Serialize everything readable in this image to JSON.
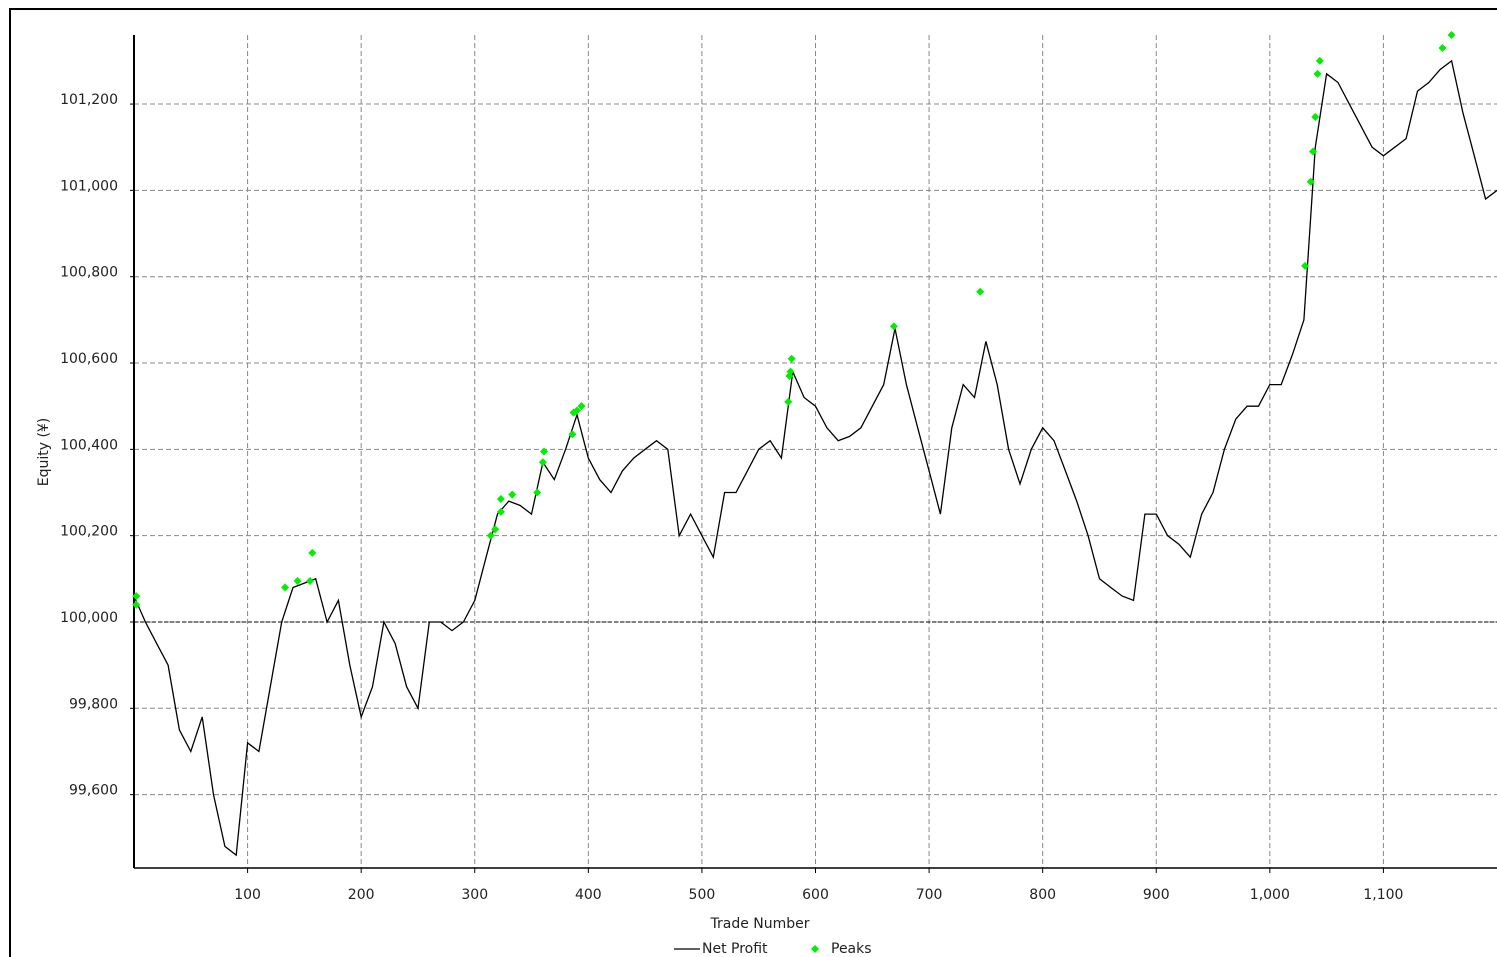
{
  "chart_data": {
    "type": "line",
    "x_label": "Trade Number",
    "y_label": "Equity (¥)",
    "xlim": [
      0,
      1200
    ],
    "ylim": [
      99430,
      101360
    ],
    "xticks": [
      100,
      200,
      300,
      400,
      500,
      600,
      700,
      800,
      900,
      {
        "value": 1000,
        "label": "1,000"
      },
      {
        "value": 1100,
        "label": "1,100"
      }
    ],
    "yticks": [
      {
        "value": 99600,
        "label": "99,600"
      },
      {
        "value": 99800,
        "label": "99,800"
      },
      {
        "value": 100000,
        "label": "100,000"
      },
      {
        "value": 100200,
        "label": "100,200"
      },
      {
        "value": 100400,
        "label": "100,400"
      },
      {
        "value": 100600,
        "label": "100,600"
      },
      {
        "value": 100800,
        "label": "100,800"
      },
      {
        "value": 101000,
        "label": "101,000"
      },
      {
        "value": 101200,
        "label": "101,200"
      }
    ],
    "grid": true,
    "reference_line": 100000,
    "legend": "bottom",
    "series": [
      {
        "name": "Net Profit",
        "color": "#000000",
        "x": [
          0,
          10,
          20,
          30,
          40,
          50,
          60,
          70,
          80,
          90,
          100,
          110,
          120,
          130,
          140,
          150,
          160,
          170,
          180,
          190,
          200,
          210,
          220,
          230,
          240,
          250,
          260,
          270,
          280,
          290,
          300,
          310,
          320,
          330,
          340,
          350,
          360,
          370,
          380,
          390,
          400,
          410,
          420,
          430,
          440,
          450,
          460,
          470,
          480,
          490,
          500,
          510,
          520,
          530,
          540,
          550,
          560,
          570,
          580,
          590,
          600,
          610,
          620,
          630,
          640,
          650,
          660,
          670,
          680,
          690,
          700,
          710,
          720,
          730,
          740,
          750,
          760,
          770,
          780,
          790,
          800,
          810,
          820,
          830,
          840,
          850,
          860,
          870,
          880,
          890,
          900,
          910,
          920,
          930,
          940,
          950,
          960,
          970,
          980,
          990,
          1000,
          1010,
          1020,
          1030,
          1040,
          1050,
          1060,
          1070,
          1080,
          1090,
          1100,
          1110,
          1120,
          1130,
          1140,
          1150,
          1160,
          1170,
          1180,
          1190,
          1200
        ],
        "values": [
          100060,
          100000,
          99950,
          99900,
          99750,
          99700,
          99780,
          99600,
          99480,
          99460,
          99720,
          99700,
          99850,
          100000,
          100080,
          100090,
          100100,
          100000,
          100050,
          99900,
          99780,
          99850,
          100000,
          99950,
          99850,
          99800,
          100000,
          100000,
          99980,
          100000,
          100050,
          100150,
          100250,
          100280,
          100270,
          100250,
          100370,
          100330,
          100400,
          100480,
          100380,
          100330,
          100300,
          100350,
          100380,
          100400,
          100420,
          100400,
          100200,
          100250,
          100200,
          100150,
          100300,
          100300,
          100350,
          100400,
          100420,
          100380,
          100580,
          100520,
          100500,
          100450,
          100420,
          100430,
          100450,
          100500,
          100550,
          100680,
          100550,
          100450,
          100350,
          100250,
          100450,
          100550,
          100520,
          100650,
          100550,
          100400,
          100320,
          100400,
          100450,
          100420,
          100350,
          100280,
          100200,
          100100,
          100080,
          100060,
          100050,
          100250,
          100250,
          100200,
          100180,
          100150,
          100250,
          100300,
          100400,
          100470,
          100500,
          100500,
          100550,
          100550,
          100620,
          100700,
          101100,
          101270,
          101250,
          101200,
          101150,
          101100,
          101080,
          101100,
          101120,
          101230,
          101250,
          101280,
          101300,
          101180,
          101080,
          100980,
          101000
        ]
      },
      {
        "name": "Peaks",
        "color": "#00ee00",
        "x": [
          2,
          2,
          133,
          144,
          155,
          157,
          314,
          318,
          323,
          323,
          333,
          355,
          360,
          361,
          386,
          387,
          390,
          394,
          576,
          577,
          578,
          579,
          669,
          745,
          1031,
          1036,
          1038,
          1040,
          1042,
          1044,
          1152,
          1160
        ],
        "values": [
          100060,
          100040,
          100080,
          100095,
          100095,
          100160,
          100200,
          100215,
          100255,
          100285,
          100295,
          100300,
          100370,
          100395,
          100435,
          100485,
          100490,
          100500,
          100510,
          100570,
          100580,
          100610,
          100685,
          100765,
          100825,
          101020,
          101090,
          101170,
          101270,
          101300,
          101330,
          101360
        ]
      }
    ]
  }
}
